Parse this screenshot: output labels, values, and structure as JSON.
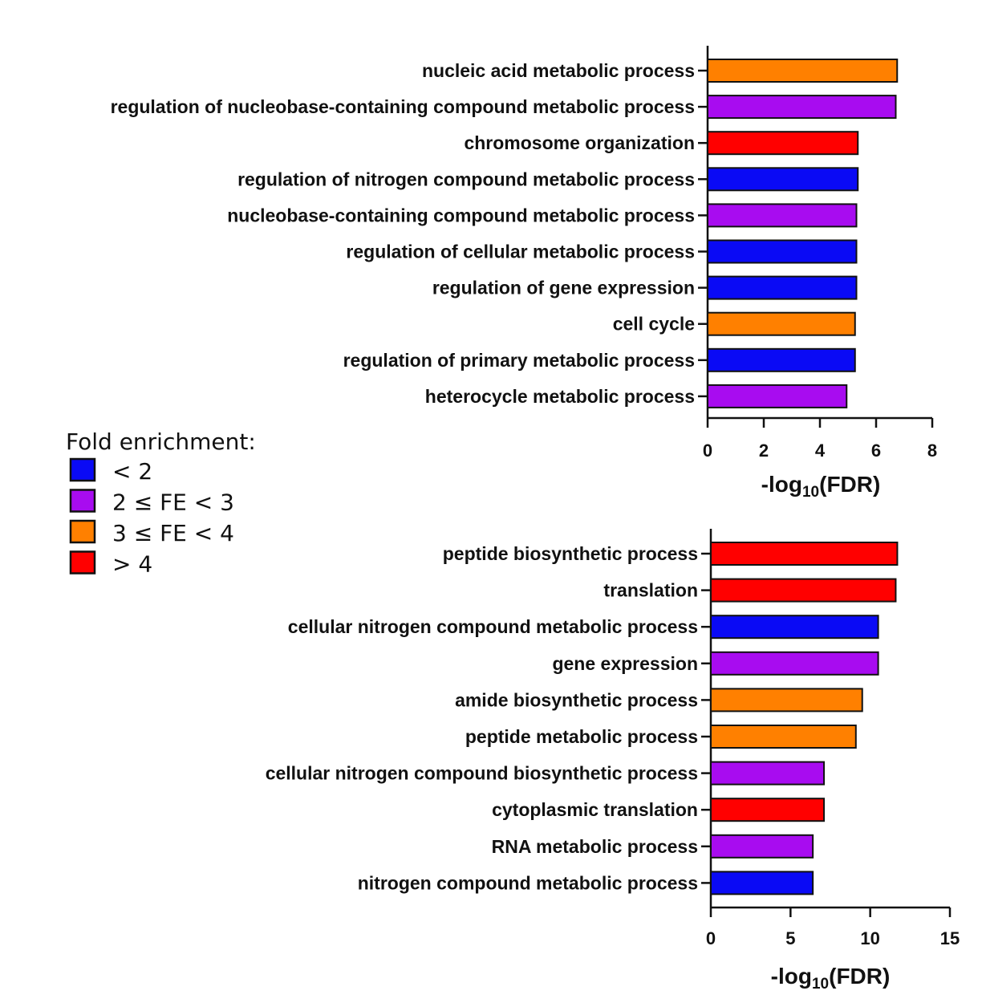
{
  "colors": {
    "lt2": "#0a0af5",
    "fe2to3": "#a80cf0",
    "fe3to4": "#ff8000",
    "gt4": "#ff0000"
  },
  "legend": {
    "title": "Fold enrichment:",
    "items": [
      {
        "key": "lt2",
        "label": "< 2"
      },
      {
        "key": "fe2to3",
        "label": "2 ≤ FE < 3"
      },
      {
        "key": "fe3to4",
        "label": "3 ≤ FE < 4"
      },
      {
        "key": "gt4",
        "label": "> 4"
      }
    ]
  },
  "chart_data": [
    {
      "type": "bar",
      "orientation": "horizontal",
      "xlabel": "-log10(FDR)",
      "xlim": [
        0,
        8
      ],
      "xticks": [
        "0",
        "2",
        "4",
        "6",
        "8"
      ],
      "categories": [
        "nucleic acid metabolic process",
        "regulation of nucleobase-containing compound metabolic process",
        "chromosome organization",
        "regulation of nitrogen compound metabolic process",
        "nucleobase-containing compound metabolic process",
        "regulation of cellular metabolic process",
        "regulation of gene expression",
        "cell cycle",
        "regulation of primary metabolic process",
        "heterocycle metabolic process"
      ],
      "values": [
        6.75,
        6.7,
        5.35,
        5.35,
        5.3,
        5.3,
        5.3,
        5.25,
        5.25,
        4.95
      ],
      "fold_enrichment_class": [
        "fe3to4",
        "fe2to3",
        "gt4",
        "lt2",
        "fe2to3",
        "lt2",
        "lt2",
        "fe3to4",
        "lt2",
        "fe2to3"
      ]
    },
    {
      "type": "bar",
      "orientation": "horizontal",
      "xlabel": "-log10(FDR)",
      "xlim": [
        0,
        15
      ],
      "xticks": [
        "0",
        "5",
        "10",
        "15"
      ],
      "categories": [
        "peptide biosynthetic process",
        "translation",
        "cellular nitrogen compound metabolic process",
        "gene expression",
        "amide biosynthetic process",
        "peptide metabolic process",
        "cellular nitrogen compound biosynthetic process",
        "cytoplasmic translation",
        "RNA metabolic process",
        "nitrogen compound metabolic process"
      ],
      "values": [
        11.7,
        11.6,
        10.5,
        10.5,
        9.5,
        9.1,
        7.1,
        7.1,
        6.4,
        6.4
      ],
      "fold_enrichment_class": [
        "gt4",
        "gt4",
        "lt2",
        "fe2to3",
        "fe3to4",
        "fe3to4",
        "fe2to3",
        "gt4",
        "fe2to3",
        "lt2"
      ]
    }
  ]
}
